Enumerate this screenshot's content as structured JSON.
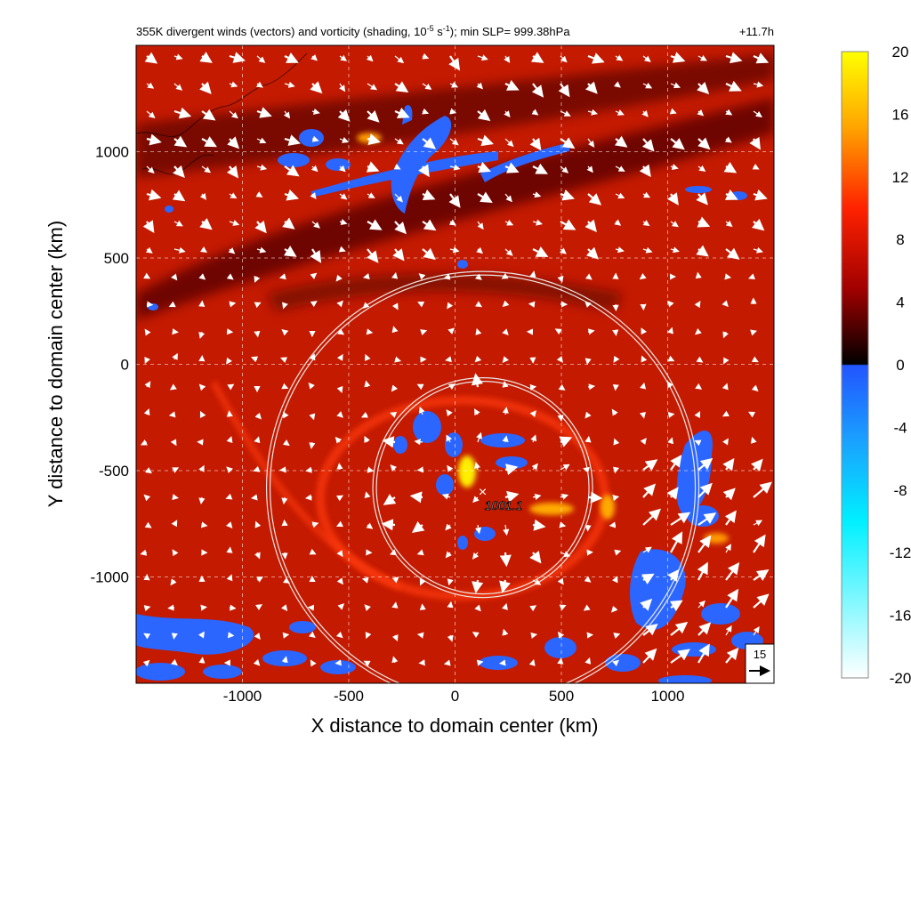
{
  "header": {
    "title_main": "355K divergent winds (vectors) and vorticity (shading, 10",
    "title_exp1": "-5",
    "title_mid": " s",
    "title_exp2": "-1",
    "title_end": "); min SLP= 999.38hPa",
    "time_label": "+11.7h"
  },
  "chart_data": {
    "type": "heatmap",
    "xlabel": "X distance to domain center (km)",
    "ylabel": "Y distance to domain center (km)",
    "xlim": [
      -1500,
      1500
    ],
    "ylim": [
      -1500,
      1500
    ],
    "xticks": [
      -1000,
      -500,
      0,
      500,
      1000
    ],
    "yticks": [
      -1000,
      -500,
      0,
      500,
      1000
    ],
    "grid": true,
    "colorbar": {
      "min": -20,
      "max": 20,
      "ticks": [
        20,
        16,
        12,
        8,
        4,
        0,
        -4,
        -8,
        -12,
        -16,
        -20
      ],
      "colors": {
        "top": "#ffff00",
        "upper": "#ff9900",
        "mid": "#dd1100",
        "low": "#550000",
        "zero": "#000000",
        "neg_start": "#2255ff",
        "neg_mid": "#00ffff",
        "neg_end": "#ffffff"
      }
    },
    "rings": [
      {
        "center_km": [
          130,
          -580
        ],
        "radius_km": 500
      },
      {
        "center_km": [
          130,
          -580
        ],
        "radius_km": 1000
      }
    ],
    "center_marker": {
      "x_km": 130,
      "y_km": -600,
      "label": "1001.1"
    },
    "reference_vector": {
      "label": "15"
    },
    "background_color": "#c41a00"
  }
}
